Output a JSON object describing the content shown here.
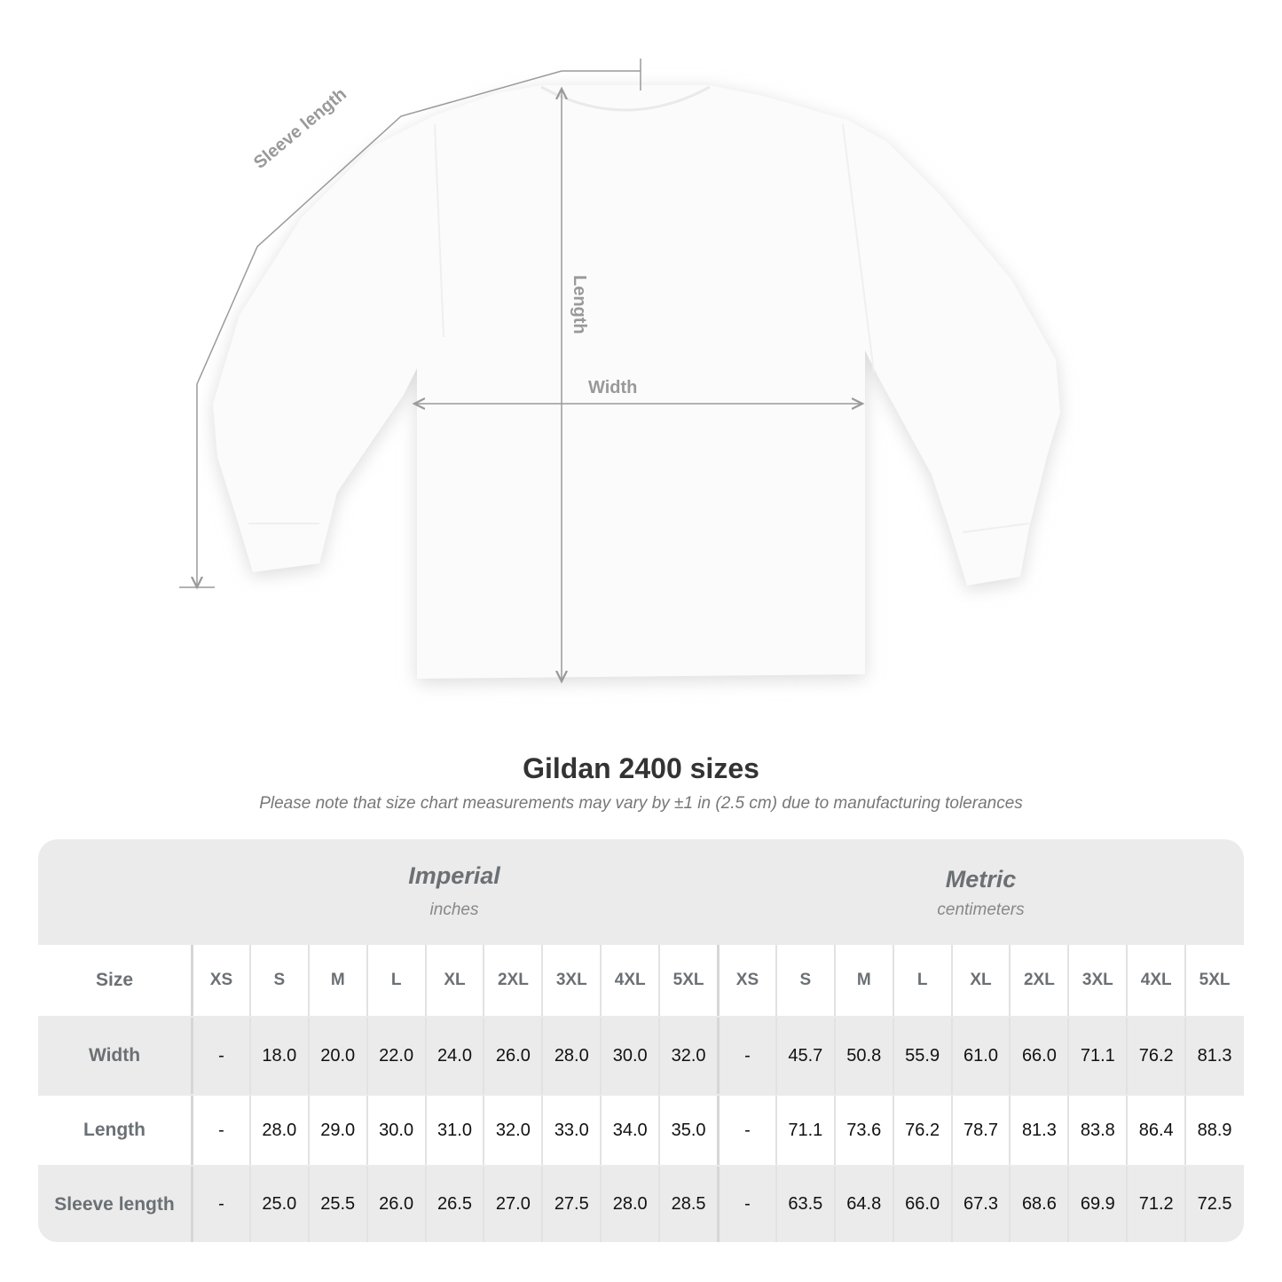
{
  "diagram": {
    "labels": {
      "sleeve_length": "Sleeve length",
      "length": "Length",
      "width": "Width"
    },
    "colors": {
      "measure_line": "#9a9a9a",
      "label": "#999999"
    }
  },
  "title": "Gildan 2400 sizes",
  "note": "Please note that size chart measurements may vary by ±1 in (2.5 cm) due to manufacturing tolerances",
  "table": {
    "imperial": {
      "name": "Imperial",
      "unit": "inches"
    },
    "metric": {
      "name": "Metric",
      "unit": "centimeters"
    },
    "size_label": "Size",
    "sizes": [
      "XS",
      "S",
      "M",
      "L",
      "XL",
      "2XL",
      "3XL",
      "4XL",
      "5XL"
    ],
    "rows": [
      {
        "label": "Width",
        "imperial": [
          "-",
          "18.0",
          "20.0",
          "22.0",
          "24.0",
          "26.0",
          "28.0",
          "30.0",
          "32.0"
        ],
        "metric": [
          "-",
          "45.7",
          "50.8",
          "55.9",
          "61.0",
          "66.0",
          "71.1",
          "76.2",
          "81.3"
        ]
      },
      {
        "label": "Length",
        "imperial": [
          "-",
          "28.0",
          "29.0",
          "30.0",
          "31.0",
          "32.0",
          "33.0",
          "34.0",
          "35.0"
        ],
        "metric": [
          "-",
          "71.1",
          "73.6",
          "76.2",
          "78.7",
          "81.3",
          "83.8",
          "86.4",
          "88.9"
        ]
      },
      {
        "label": "Sleeve length",
        "imperial": [
          "-",
          "25.0",
          "25.5",
          "26.0",
          "26.5",
          "27.0",
          "27.5",
          "28.0",
          "28.5"
        ],
        "metric": [
          "-",
          "63.5",
          "64.8",
          "66.0",
          "67.3",
          "68.6",
          "69.9",
          "71.2",
          "72.5"
        ]
      }
    ],
    "colors": {
      "header_bg": "#ebebeb",
      "label_text": "#6b7074"
    }
  }
}
